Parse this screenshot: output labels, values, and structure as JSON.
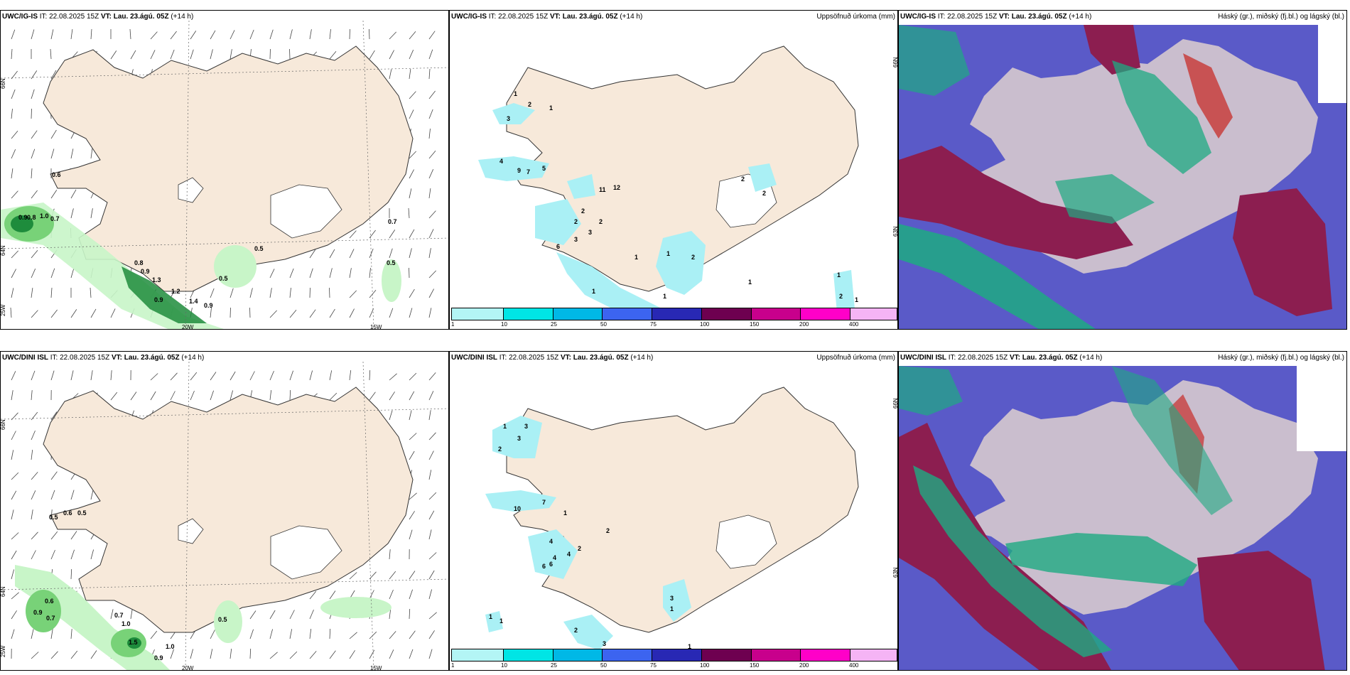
{
  "panels": {
    "wind_top": {
      "model": "UWC/IG-IS",
      "it": "IT: 22.08.2025 15Z",
      "vt": "VT: Lau. 23.ágú. 05Z",
      "lead": "(+14 h)"
    },
    "precip_top": {
      "model": "UWC/IG-IS",
      "it": "IT: 22.08.2025 15Z",
      "vt": "VT: Lau. 23.ágú. 05Z",
      "lead": "(+14 h)",
      "right": "Uppsöfnuð úrkoma (mm)"
    },
    "cloud_top": {
      "model": "UWC/IG-IS",
      "it": "IT: 22.08.2025 15Z",
      "vt": "VT: Lau. 23.ágú. 05Z",
      "lead": "(+14 h)",
      "right": "Háský (gr.), miðský (fj.bl.) og lágský (bl.)"
    },
    "wind_bot": {
      "model": "UWC/DINI ISL",
      "it": "IT: 22.08.2025 15Z",
      "vt": "VT: Lau. 23.ágú. 05Z",
      "lead": "(+14 h)"
    },
    "precip_bot": {
      "model": "UWC/DINI ISL",
      "it": "IT: 22.08.2025 15Z",
      "vt": "VT: Lau. 23.ágú. 05Z",
      "lead": "(+14 h)",
      "right": "Uppsöfnuð úrkoma (mm)"
    },
    "cloud_bot": {
      "model": "UWC/DINI ISL",
      "it": "IT: 22.08.2025 15Z",
      "vt": "VT: Lau. 23.ágú. 05Z",
      "lead": "(+14 h)",
      "right": "Háský (gr.), miðský (fj.bl.) og lágský (bl.)"
    }
  },
  "axis_labels": {
    "lat66": "66N",
    "lat64": "64N",
    "lon25": "25W",
    "lon20": "20W",
    "lon15": "15W",
    "lat63": "63N"
  },
  "colorbar": {
    "colors": [
      "#b3f5f5",
      "#00e5e5",
      "#00b8e6",
      "#3c64f0",
      "#2828b4",
      "#6e0050",
      "#c8008c",
      "#ff00c8",
      "#f5b4f5"
    ],
    "ticks": [
      "1",
      "10",
      "25",
      "50",
      "75",
      "100",
      "150",
      "200",
      "400"
    ]
  },
  "wind_values_top": [
    {
      "v": "0.6"
    },
    {
      "v": "0.8"
    },
    {
      "v": "0.9"
    },
    {
      "v": "1.0"
    },
    {
      "v": "0.7"
    },
    {
      "v": "0.5"
    },
    {
      "v": "0.7"
    },
    {
      "v": "0.5"
    },
    {
      "v": "0.8"
    },
    {
      "v": "0.9"
    },
    {
      "v": "1.3"
    },
    {
      "v": "0.9"
    },
    {
      "v": "1.2"
    },
    {
      "v": "1.4"
    },
    {
      "v": "0.9"
    },
    {
      "v": "0.5"
    }
  ],
  "wind_values_bot": [
    {
      "v": "0.5"
    },
    {
      "v": "0.6"
    },
    {
      "v": "0.5"
    },
    {
      "v": "0.6"
    },
    {
      "v": "0.9"
    },
    {
      "v": "0.7"
    },
    {
      "v": "0.7"
    },
    {
      "v": "1.0"
    },
    {
      "v": "1.5"
    },
    {
      "v": "1.0"
    },
    {
      "v": "0.9"
    },
    {
      "v": "0.5"
    }
  ],
  "precip_values_top": [
    "1",
    "2",
    "1",
    "3",
    "4",
    "9",
    "7",
    "5",
    "11",
    "12",
    "2",
    "2",
    "6",
    "3",
    "3",
    "2",
    "2",
    "2",
    "2",
    "1",
    "1",
    "1",
    "1",
    "1",
    "1",
    "2",
    "1"
  ],
  "precip_values_bot": [
    "1",
    "3",
    "3",
    "2",
    "7",
    "10",
    "1",
    "4",
    "4",
    "4",
    "2",
    "6",
    "6",
    "2",
    "3",
    "1",
    "2",
    "1",
    "1",
    "3",
    "1"
  ],
  "colors": {
    "land": "#f7e9da",
    "precip": "#aaf0f5",
    "green1": "#c8f5c8",
    "green2": "#78d278",
    "green3": "#1e8c3c",
    "cloud_blue": "#5a5ac8",
    "cloud_red": "#8c1e50",
    "cloud_green": "#1eaa82"
  }
}
